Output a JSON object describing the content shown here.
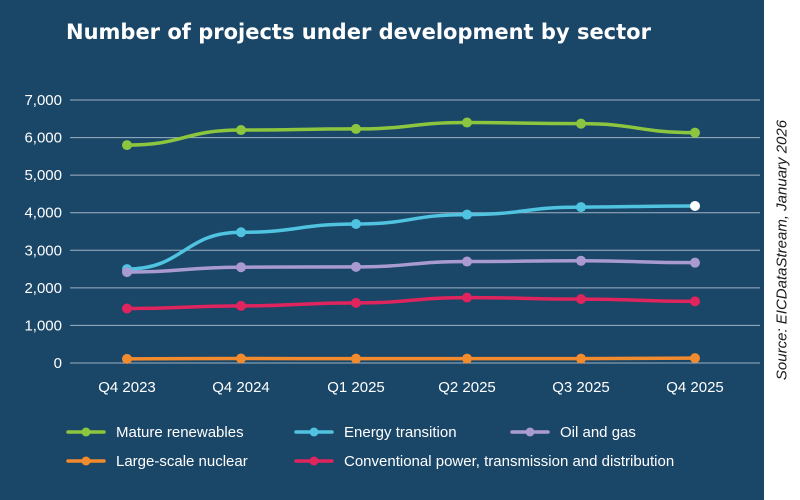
{
  "title": "Number of projects under development by sector",
  "source": "Source: EICDataStream, January 2026",
  "colors": {
    "panel": "#1a4668",
    "gridline": "#9fb2c4",
    "text": "#ffffff",
    "highlight_point": "#ffffff"
  },
  "chart_data": {
    "type": "line",
    "title": "Number of projects under development by sector",
    "categories": [
      "Q4 2023",
      "Q4 2024",
      "Q1 2025",
      "Q2 2025",
      "Q3 2025",
      "Q4 2025"
    ],
    "ylim": [
      0,
      7000
    ],
    "yticks": [
      0,
      1000,
      2000,
      3000,
      4000,
      5000,
      6000,
      7000
    ],
    "ytick_labels": [
      "0",
      "1,000",
      "2,000",
      "3,000",
      "4,000",
      "5,000",
      "6,000",
      "7,000"
    ],
    "grid": true,
    "legend_position": "bottom",
    "series": [
      {
        "name": "Mature renewables",
        "color": "#8cc63f",
        "values": [
          5800,
          6200,
          6230,
          6400,
          6370,
          6130
        ]
      },
      {
        "name": "Energy transition",
        "color": "#4fc3e0",
        "values": [
          2500,
          3480,
          3700,
          3950,
          4150,
          4180
        ],
        "highlight_last": true
      },
      {
        "name": "Oil and gas",
        "color": "#a99bd1",
        "values": [
          2420,
          2550,
          2560,
          2700,
          2720,
          2670
        ]
      },
      {
        "name": "Large-scale nuclear",
        "color": "#f28a2e",
        "values": [
          110,
          120,
          115,
          115,
          115,
          130
        ]
      },
      {
        "name": "Conventional power, transmission and distribution",
        "color": "#e0245e",
        "values": [
          1450,
          1520,
          1600,
          1740,
          1700,
          1640
        ]
      }
    ]
  }
}
